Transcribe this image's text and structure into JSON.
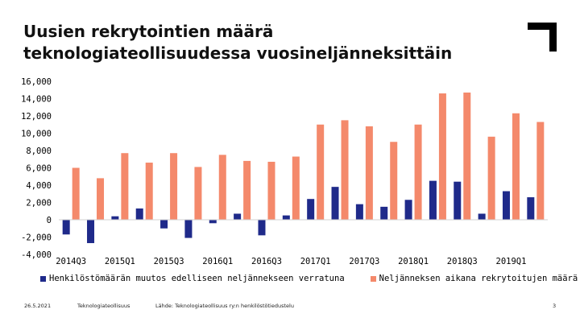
{
  "title": {
    "line1": "Uusien rekrytointien määrä",
    "line2": "teknologiateollisuudessa vuosineljänneksittäin"
  },
  "chart_data": {
    "type": "bar",
    "categories": [
      "2014Q3",
      "2014Q4",
      "2015Q1",
      "2015Q2",
      "2015Q3",
      "2015Q4",
      "2016Q1",
      "2016Q2",
      "2016Q3",
      "2016Q4",
      "2017Q1",
      "2017Q2",
      "2017Q3",
      "2017Q4",
      "2018Q1",
      "2018Q2",
      "2018Q3",
      "2018Q4",
      "2019Q1",
      "2019Q2"
    ],
    "tick_labels": [
      "2014Q3",
      "",
      "2015Q1",
      "",
      "2015Q3",
      "",
      "2016Q1",
      "",
      "2016Q3",
      "",
      "2017Q1",
      "",
      "2017Q3",
      "",
      "2018Q1",
      "",
      "2018Q3",
      "",
      "2019Q1",
      ""
    ],
    "series": [
      {
        "name": "Henkilöstömäärän muutos edelliseen neljännekseen verratuna",
        "color": "#1f2a8a",
        "values": [
          -1700,
          -2700,
          400,
          1300,
          -1000,
          -2100,
          -400,
          700,
          -1800,
          500,
          2400,
          3800,
          1800,
          1500,
          2300,
          4500,
          4400,
          700,
          3300,
          2600
        ]
      },
      {
        "name": "Neljänneksen aikana rekrytoitujen määrä",
        "color": "#f4896b",
        "values": [
          6000,
          4800,
          7700,
          6600,
          7700,
          6100,
          7500,
          6800,
          6700,
          7300,
          11000,
          11500,
          10800,
          9000,
          11000,
          14600,
          14700,
          9600,
          12300,
          11300
        ]
      }
    ],
    "ylim": [
      -4000,
      16000
    ],
    "yticks": [
      -4000,
      -2000,
      0,
      2000,
      4000,
      6000,
      8000,
      10000,
      12000,
      14000,
      16000
    ],
    "ytick_labels": [
      "-4,000",
      "-2,000",
      "0",
      "2,000",
      "4,000",
      "6,000",
      "8,000",
      "10,000",
      "12,000",
      "14,000",
      "16,000"
    ],
    "grid": false,
    "legend_position": "bottom"
  },
  "footer": {
    "date": "26.5.2021",
    "org": "Teknologiateollisuus",
    "source": "Lähde: Teknologiateollisuus ry:n henkilöstötiedustelu",
    "page": "3"
  }
}
